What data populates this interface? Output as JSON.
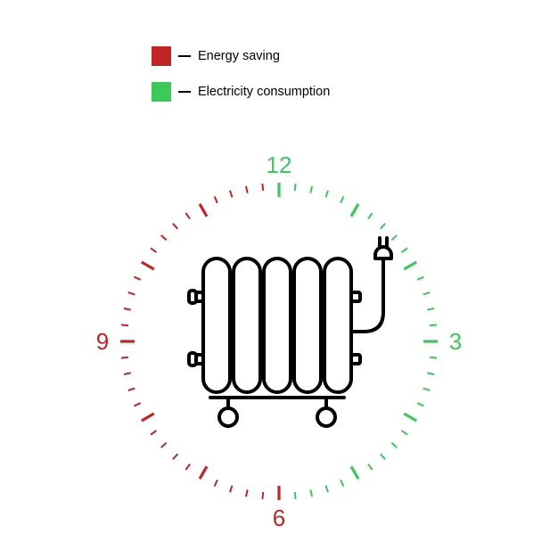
{
  "legend": {
    "items": [
      {
        "label": "Energy saving",
        "color": "#c02424"
      },
      {
        "label": "Electricity consumption",
        "color": "#3cc85a"
      }
    ]
  },
  "clock": {
    "hours": [
      {
        "n": "12",
        "angle": 0,
        "color": "#3cc85a"
      },
      {
        "n": "3",
        "angle": 90,
        "color": "#3cc85a"
      },
      {
        "n": "6",
        "angle": 180,
        "color": "#c02424"
      },
      {
        "n": "9",
        "angle": 270,
        "color": "#c02424"
      }
    ],
    "total_ticks": 60,
    "minor_tick_len": 8,
    "major_tick_len": 16,
    "tick_radius_outer": 178,
    "tick_width_minor": 2,
    "tick_width_major": 3.2,
    "number_radius": 198,
    "number_fontsize": 26,
    "colors": {
      "right_half": "#3cc85a",
      "left_half": "#c02424",
      "top_blend_start_deg": 350,
      "top_blend_end_deg": 10,
      "bottom_blend_start_deg": 170,
      "bottom_blend_end_deg": 190
    }
  },
  "radiator": {
    "stroke_color": "#000000",
    "stroke_width": 4,
    "fin_count": 5
  }
}
